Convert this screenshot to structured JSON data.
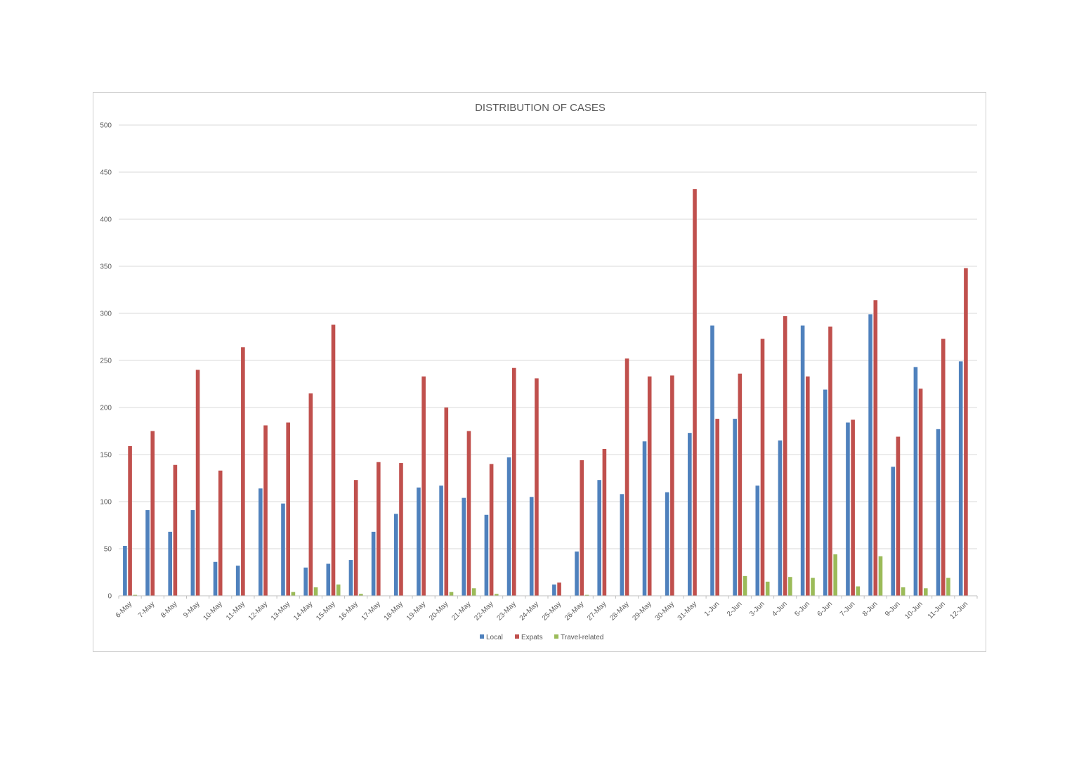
{
  "chart_data": {
    "type": "bar",
    "title": "DISTRIBUTION OF CASES",
    "xlabel": "",
    "ylabel": "",
    "ylim": [
      0,
      500
    ],
    "yticks": [
      0,
      50,
      100,
      150,
      200,
      250,
      300,
      350,
      400,
      450,
      500
    ],
    "grid": true,
    "legend_position": "bottom",
    "categories": [
      "6-May",
      "7-May",
      "8-May",
      "9-May",
      "10-May",
      "11-May",
      "12-May",
      "13-May",
      "14-May",
      "15-May",
      "16-May",
      "17-May",
      "18-May",
      "19-May",
      "20-May",
      "21-May",
      "22-May",
      "23-May",
      "24-May",
      "25-May",
      "26-May",
      "27-May",
      "28-May",
      "29-May",
      "30-May",
      "31-May",
      "1-Jun",
      "2-Jun",
      "3-Jun",
      "4-Jun",
      "5-Jun",
      "6-Jun",
      "7-Jun",
      "8-Jun",
      "9-Jun",
      "10-Jun",
      "11-Jun",
      "12-Jun"
    ],
    "series": [
      {
        "name": "Local",
        "color": "#4f81bd",
        "values": [
          53,
          91,
          68,
          91,
          36,
          32,
          114,
          98,
          30,
          34,
          38,
          68,
          87,
          115,
          117,
          104,
          86,
          147,
          105,
          12,
          47,
          123,
          108,
          164,
          110,
          173,
          287,
          188,
          117,
          165,
          287,
          219,
          184,
          299,
          137,
          243,
          177,
          249
        ]
      },
      {
        "name": "Expats",
        "color": "#c0504d",
        "values": [
          159,
          175,
          139,
          240,
          133,
          264,
          181,
          184,
          215,
          288,
          123,
          142,
          141,
          233,
          200,
          175,
          140,
          242,
          231,
          14,
          144,
          156,
          252,
          233,
          234,
          432,
          188,
          236,
          273,
          297,
          233,
          286,
          187,
          314,
          169,
          220,
          273,
          348
        ]
      },
      {
        "name": "Travel-related",
        "color": "#9bbb59",
        "values": [
          1,
          0,
          0,
          0,
          0,
          0,
          0,
          4,
          9,
          12,
          2,
          0,
          0,
          0,
          4,
          8,
          2,
          0,
          0,
          0,
          1,
          0,
          0,
          0,
          0,
          0,
          0,
          21,
          15,
          20,
          19,
          44,
          10,
          42,
          9,
          8,
          19,
          0
        ]
      }
    ]
  }
}
